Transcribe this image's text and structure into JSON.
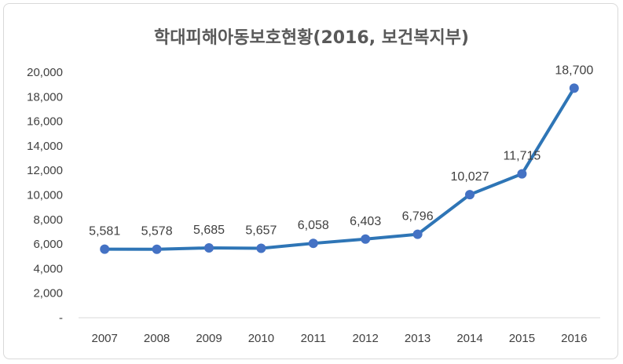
{
  "chart_data": {
    "type": "line",
    "title": "학대피해아동보호현황(2016, 보건복지부)",
    "categories": [
      "2007",
      "2008",
      "2009",
      "2010",
      "2011",
      "2012",
      "2013",
      "2014",
      "2015",
      "2016"
    ],
    "series": [
      {
        "values": [
          5581,
          5578,
          5685,
          5657,
          6058,
          6403,
          6796,
          10027,
          11715,
          18700
        ],
        "data_labels": [
          "5,581",
          "5,578",
          "5,685",
          "5,657",
          "6,058",
          "6,403",
          "6,796",
          "10,027",
          "11,715",
          "18,700"
        ]
      }
    ],
    "yticks": [
      "-",
      "2,000",
      "4,000",
      "6,000",
      "8,000",
      "10,000",
      "12,000",
      "14,000",
      "16,000",
      "18,000",
      "20,000"
    ],
    "ylim": [
      0,
      20000
    ],
    "grid": false,
    "legend": "none",
    "line_color": "#2e75b6",
    "marker_color": "#4472c4"
  }
}
